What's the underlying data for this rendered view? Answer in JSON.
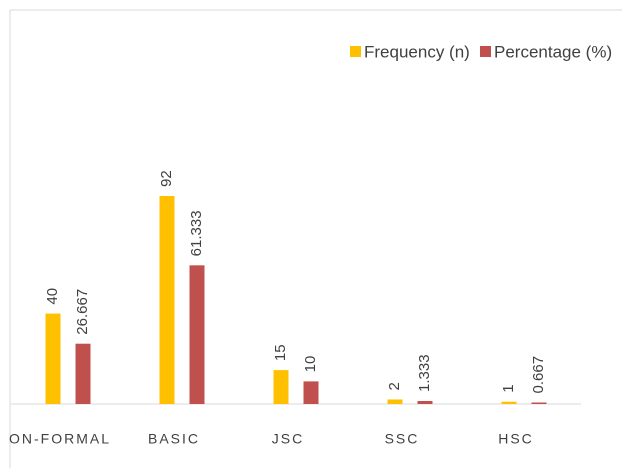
{
  "chart_data": {
    "type": "bar",
    "categories": [
      "ON-FORMAL",
      "BASIC",
      "JSC",
      "SSC",
      "HSC"
    ],
    "series": [
      {
        "name": "Frequency (n)",
        "color": "#ffc000",
        "values": [
          40,
          92,
          15,
          2,
          1
        ]
      },
      {
        "name": "Percentage (%)",
        "color": "#c0504d",
        "values": [
          26.667,
          61.333,
          10,
          1.333,
          0.667
        ]
      }
    ],
    "legend": "top"
  }
}
